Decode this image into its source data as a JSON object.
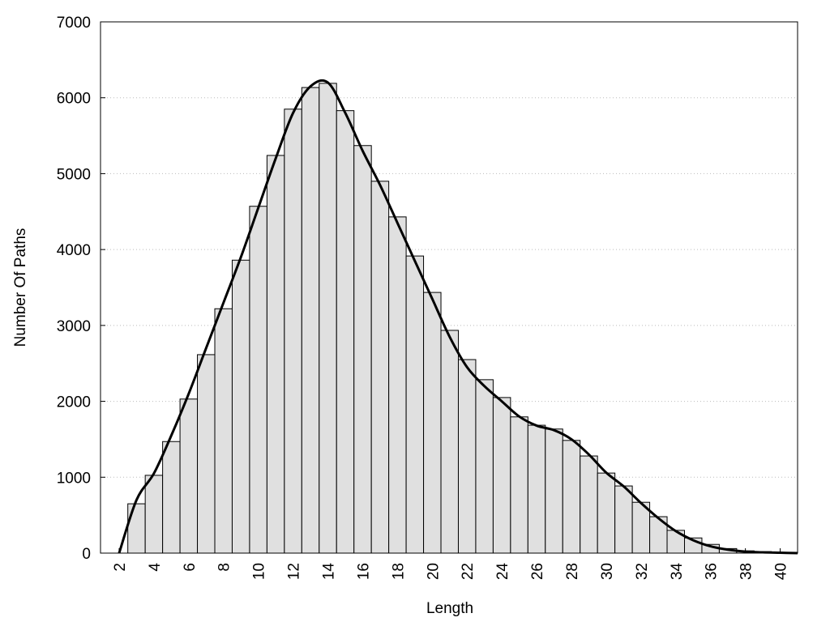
{
  "chart_data": {
    "type": "histogram",
    "xlabel": "Length",
    "ylabel": "Number Of Paths",
    "bins": [
      2.5,
      3.5,
      4.5,
      5.5,
      6.5,
      7.5,
      8.5,
      9.5,
      10.5,
      11.5,
      12.5,
      13.5,
      14.5,
      15.5,
      16.5,
      17.5,
      18.5,
      19.5,
      20.5,
      21.5,
      22.5,
      23.5,
      24.5,
      25.5,
      26.5,
      27.5,
      28.5,
      29.5,
      30.5,
      31.5,
      32.5,
      33.5,
      34.5,
      35.5,
      36.5,
      37.5,
      38.5,
      39.5,
      40.5
    ],
    "values": [
      650,
      1025,
      1470,
      2030,
      2615,
      3220,
      3860,
      4570,
      5240,
      5850,
      6135,
      6190,
      5830,
      5370,
      4900,
      4430,
      3915,
      3435,
      2935,
      2550,
      2285,
      2050,
      1795,
      1685,
      1635,
      1485,
      1280,
      1055,
      885,
      670,
      480,
      300,
      200,
      115,
      60,
      30,
      20,
      10
    ],
    "color": "#e0e0e0",
    "edgecolor": "#000000",
    "curve": {
      "color": "#000000",
      "x": [
        2,
        3,
        4,
        5,
        6,
        7,
        8,
        9,
        10,
        11,
        12,
        13,
        14,
        15,
        16,
        17,
        18,
        19,
        20,
        21,
        22,
        23,
        24,
        25,
        26,
        27,
        28,
        29,
        30,
        31,
        32,
        33,
        34,
        35,
        36,
        37,
        38,
        39,
        40,
        41
      ],
      "values": [
        0,
        700,
        1050,
        1550,
        2100,
        2700,
        3300,
        3900,
        4550,
        5200,
        5800,
        6150,
        6200,
        5800,
        5300,
        4850,
        4350,
        3850,
        3350,
        2850,
        2450,
        2200,
        2000,
        1800,
        1680,
        1620,
        1500,
        1300,
        1060,
        880,
        660,
        460,
        290,
        170,
        90,
        45,
        20,
        10,
        5,
        0
      ]
    },
    "xlim": [
      0.93,
      41
    ],
    "ylim": [
      0,
      7000
    ],
    "xticks": [
      2,
      4,
      6,
      8,
      10,
      12,
      14,
      16,
      18,
      20,
      22,
      24,
      26,
      28,
      30,
      32,
      34,
      36,
      38,
      40
    ],
    "yticks": [
      0,
      1000,
      2000,
      3000,
      4000,
      5000,
      6000,
      7000
    ],
    "grid": true
  }
}
